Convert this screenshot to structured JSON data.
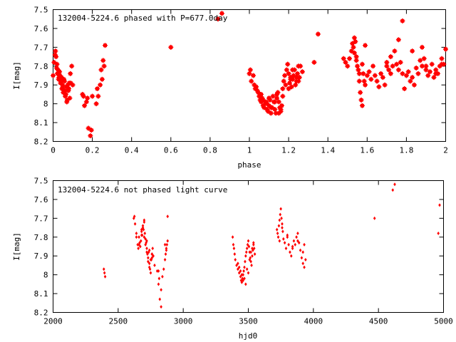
{
  "chart_data": [
    {
      "type": "scatter",
      "title": "132004-5224.6 phased with P=677.0day",
      "xlabel": "phase",
      "ylabel": "I[mag]",
      "xlim": [
        0,
        2
      ],
      "ylim": [
        8.2,
        7.5
      ],
      "y_inverted": true,
      "grid": false,
      "xticks": [
        "0",
        "0.2",
        "0.4",
        "0.6",
        "0.8",
        "1",
        "1.2",
        "1.4",
        "1.6",
        "1.8",
        "2"
      ],
      "yticks": [
        "7.5",
        "7.6",
        "7.7",
        "7.8",
        "7.9",
        "8",
        "8.1",
        "8.2"
      ],
      "marker_color": "#ff0000",
      "series": [
        {
          "x": [
            0.0,
            0.005,
            0.01,
            0.015,
            0.02,
            0.025,
            0.03,
            0.035,
            0.04,
            0.045,
            0.05,
            0.055,
            0.06,
            0.065,
            0.07,
            0.075,
            0.08,
            0.085,
            0.09,
            0.095,
            0.1,
            0.012,
            0.018,
            0.022,
            0.028,
            0.033,
            0.038,
            0.043,
            0.048,
            0.052,
            0.058,
            0.062,
            0.068,
            0.072,
            0.078,
            0.082,
            0.088,
            0.15,
            0.155,
            0.16,
            0.17,
            0.175,
            0.18,
            0.19,
            0.195,
            0.2,
            0.22,
            0.225,
            0.23,
            0.24,
            0.245,
            0.25,
            0.255,
            0.26,
            0.265,
            0.6,
            0.84,
            0.86,
            1.0,
            1.005,
            1.01,
            1.02,
            1.025,
            1.03,
            1.035,
            1.04,
            1.045,
            1.05,
            1.055,
            1.06,
            1.065,
            1.07,
            1.075,
            1.08,
            1.085,
            1.09,
            1.095,
            1.1,
            1.105,
            1.11,
            1.115,
            1.12,
            1.125,
            1.13,
            1.135,
            1.14,
            1.145,
            1.15,
            1.155,
            1.16,
            1.165,
            1.17,
            1.175,
            1.18,
            1.185,
            1.19,
            1.195,
            1.2,
            1.205,
            1.21,
            1.215,
            1.22,
            1.225,
            1.23,
            1.235,
            1.24,
            1.245,
            1.25,
            1.255,
            1.26,
            1.06,
            1.07,
            1.09,
            1.1,
            1.11,
            1.13,
            1.14,
            1.15,
            1.16,
            1.17,
            1.2,
            1.21,
            1.22,
            1.24,
            1.25,
            1.27,
            1.33,
            1.35,
            1.48,
            1.49,
            1.5,
            1.51,
            1.52,
            1.525,
            1.53,
            1.535,
            1.54,
            1.545,
            1.55,
            1.555,
            1.56,
            1.565,
            1.57,
            1.575,
            1.58,
            1.585,
            1.59,
            1.6,
            1.61,
            1.62,
            1.63,
            1.64,
            1.65,
            1.66,
            1.67,
            1.68,
            1.69,
            1.7,
            1.71,
            1.72,
            1.73,
            1.74,
            1.75,
            1.76,
            1.77,
            1.78,
            1.79,
            1.8,
            1.81,
            1.82,
            1.83,
            1.84,
            1.85,
            1.86,
            1.87,
            1.88,
            1.89,
            1.9,
            1.91,
            1.92,
            1.93,
            1.94,
            1.95,
            1.96,
            1.97,
            1.98,
            1.99,
            2.0,
            1.535,
            1.545,
            1.56,
            1.575,
            1.59,
            1.7,
            1.72,
            1.76,
            1.78,
            1.83,
            1.88,
            1.9,
            1.95,
            1.98
          ],
          "y": [
            7.85,
            7.78,
            7.74,
            7.75,
            7.79,
            7.82,
            7.86,
            7.85,
            7.88,
            7.92,
            7.91,
            7.87,
            7.93,
            7.95,
            7.99,
            7.9,
            7.92,
            7.97,
            7.89,
            7.8,
            7.9,
            7.72,
            7.81,
            7.84,
            7.87,
            7.83,
            7.89,
            7.86,
            7.9,
            7.94,
            7.88,
            7.96,
            7.91,
            7.98,
            7.93,
            7.89,
            7.84,
            7.95,
            7.96,
            8.01,
            7.99,
            7.97,
            8.13,
            8.17,
            8.14,
            7.96,
            8.0,
            7.92,
            7.96,
            7.9,
            7.82,
            7.87,
            7.77,
            7.8,
            7.69,
            7.7,
            7.55,
            7.52,
            7.84,
            7.82,
            7.88,
            7.85,
            7.9,
            7.92,
            7.91,
            7.93,
            7.94,
            7.96,
            7.98,
            7.99,
            7.97,
            8.01,
            8.02,
            8.0,
            7.99,
            8.03,
            8.04,
            8.01,
            7.98,
            8.05,
            8.02,
            7.96,
            7.99,
            8.03,
            8.05,
            7.97,
            7.94,
            7.99,
            8.02,
            8.04,
            8.01,
            7.92,
            7.88,
            7.85,
            7.9,
            7.82,
            7.79,
            7.92,
            7.89,
            7.86,
            7.91,
            7.87,
            7.85,
            7.82,
            7.9,
            7.88,
            7.84,
            7.8,
            7.86,
            7.8,
            7.95,
            7.98,
            8.0,
            7.97,
            8.02,
            7.99,
            7.95,
            8.05,
            8.03,
            7.96,
            7.84,
            7.87,
            7.82,
            7.86,
            7.88,
            7.83,
            7.78,
            7.63,
            7.76,
            7.78,
            7.8,
            7.76,
            7.72,
            7.68,
            7.7,
            7.65,
            7.67,
            7.75,
            7.8,
            7.82,
            7.88,
            7.94,
            7.98,
            8.01,
            7.84,
            7.88,
            7.9,
            7.85,
            7.83,
            7.87,
            7.8,
            7.85,
            7.88,
            7.91,
            7.84,
            7.86,
            7.9,
            7.78,
            7.82,
            7.75,
            7.8,
            7.72,
            7.79,
            7.82,
            7.78,
            7.84,
            7.92,
            7.85,
            7.83,
            7.88,
            7.86,
            7.9,
            7.81,
            7.84,
            7.77,
            7.8,
            7.76,
            7.82,
            7.85,
            7.83,
            7.79,
            7.86,
            7.82,
            7.84,
            7.8,
            7.76,
            7.79,
            7.71,
            7.73,
            7.77,
            7.84,
            7.79,
            7.69,
            7.8,
            7.84,
            7.66,
            7.56,
            7.72,
            7.7,
            7.8,
            7.84,
            7.79
          ]
        }
      ]
    },
    {
      "type": "scatter",
      "title": "132004-5224.6 not phased light curve",
      "xlabel": "hjd0",
      "ylabel": "I[mag]",
      "xlim": [
        2000,
        5000
      ],
      "ylim": [
        8.2,
        7.5
      ],
      "y_inverted": true,
      "grid": false,
      "xticks": [
        "2000",
        "2500",
        "3000",
        "3500",
        "4000",
        "4500",
        "5000"
      ],
      "yticks": [
        "7.5",
        "7.6",
        "7.7",
        "7.8",
        "7.9",
        "8",
        "8.1",
        "8.2"
      ],
      "marker_color": "#ff0000",
      "series": [
        {
          "x": [
            2390,
            2395,
            2400,
            2620,
            2625,
            2630,
            2640,
            2650,
            2655,
            2660,
            2665,
            2670,
            2675,
            2680,
            2685,
            2690,
            2695,
            2700,
            2705,
            2710,
            2715,
            2720,
            2725,
            2730,
            2735,
            2740,
            2745,
            2750,
            2755,
            2760,
            2765,
            2770,
            2640,
            2660,
            2680,
            2700,
            2720,
            2740,
            2760,
            2780,
            2800,
            2810,
            2820,
            2830,
            2840,
            2850,
            2860,
            2870,
            2880,
            2680,
            2690,
            2700,
            2710,
            2720,
            2730,
            2740,
            2750,
            2760,
            2810,
            2815,
            2830,
            2860,
            2865,
            2870,
            2875,
            2880,
            3380,
            3385,
            3390,
            3395,
            3400,
            3410,
            3420,
            3430,
            3440,
            3445,
            3450,
            3455,
            3460,
            3465,
            3470,
            3475,
            3480,
            3485,
            3490,
            3495,
            3500,
            3505,
            3510,
            3515,
            3520,
            3525,
            3530,
            3535,
            3540,
            3545,
            3550,
            3420,
            3440,
            3460,
            3480,
            3500,
            3520,
            3540,
            3430,
            3450,
            3470,
            3490,
            3510,
            3530,
            3720,
            3725,
            3730,
            3735,
            3740,
            3745,
            3750,
            3755,
            3760,
            3765,
            3770,
            3780,
            3790,
            3800,
            3810,
            3820,
            3830,
            3840,
            3850,
            3860,
            3870,
            3880,
            3890,
            3900,
            3910,
            3920,
            3930,
            3940,
            3740,
            3760,
            3800,
            3840,
            3880,
            3920,
            3930,
            4470,
            4610,
            4625,
            4960,
            4970
          ],
          "y": [
            7.97,
            7.99,
            8.01,
            7.7,
            7.69,
            7.73,
            7.78,
            7.84,
            7.86,
            7.8,
            7.83,
            7.85,
            7.82,
            7.77,
            7.79,
            7.74,
            7.76,
            7.72,
            7.78,
            7.81,
            7.83,
            7.86,
            7.89,
            7.91,
            7.88,
            7.94,
            7.97,
            7.99,
            7.92,
            7.89,
            7.86,
            7.9,
            7.8,
            7.84,
            7.76,
            7.71,
            7.82,
            7.87,
            7.91,
            7.95,
            7.98,
            8.05,
            8.13,
            8.17,
            8.01,
            7.97,
            7.84,
            7.87,
            7.69,
            7.79,
            7.75,
            7.8,
            7.84,
            7.88,
            7.93,
            7.96,
            7.92,
            7.89,
            7.98,
            8.02,
            8.08,
            7.92,
            7.89,
            7.86,
            7.84,
            7.82,
            7.8,
            7.84,
            7.86,
            7.89,
            7.92,
            7.95,
            7.97,
            7.99,
            8.01,
            8.03,
            8.04,
            8.02,
            8.0,
            7.98,
            7.96,
            7.93,
            7.9,
            7.88,
            7.86,
            7.84,
            7.82,
            7.85,
            7.88,
            7.91,
            7.93,
            7.95,
            7.9,
            7.87,
            7.84,
            7.86,
            7.89,
            7.94,
            7.98,
            8.03,
            8.05,
            7.99,
            7.88,
            7.83,
            7.96,
            8.0,
            8.02,
            7.97,
            7.92,
            7.86,
            7.76,
            7.78,
            7.8,
            7.74,
            7.71,
            7.68,
            7.65,
            7.7,
            7.73,
            7.77,
            7.81,
            7.83,
            7.86,
            7.8,
            7.84,
            7.88,
            7.9,
            7.86,
            7.82,
            7.84,
            7.8,
            7.78,
            7.83,
            7.87,
            7.91,
            7.94,
            7.96,
            7.92,
            7.82,
            7.75,
            7.79,
            7.85,
            7.82,
            7.88,
            7.84,
            7.7,
            7.55,
            7.52,
            7.78,
            7.63
          ]
        }
      ]
    }
  ]
}
